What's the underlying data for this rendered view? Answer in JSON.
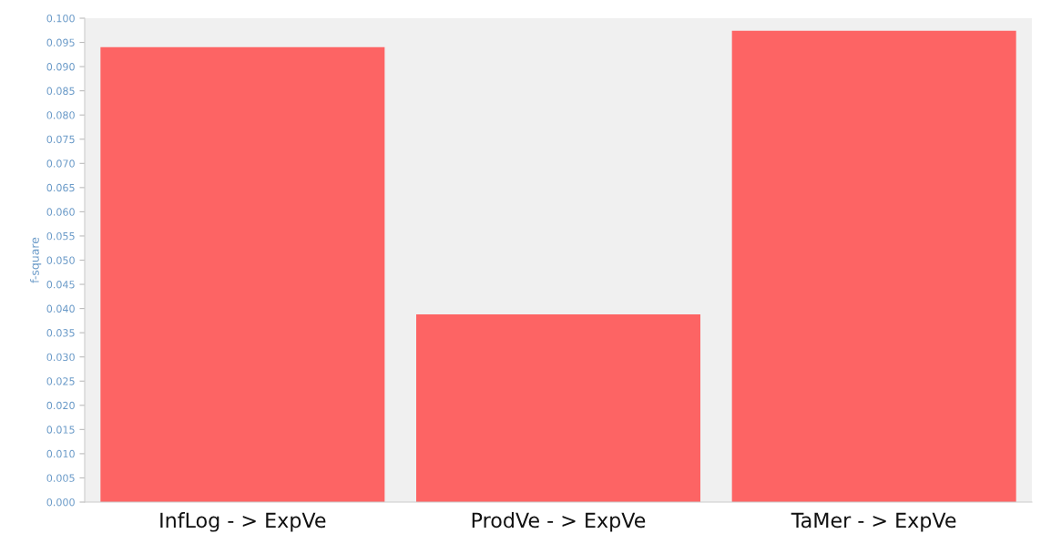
{
  "chart_data": {
    "type": "bar",
    "ylabel": "f-square",
    "categories": [
      "InfLog - > ExpVe",
      "ProdVe - > ExpVe",
      "TaMer - > ExpVe"
    ],
    "values": [
      0.094,
      0.0388,
      0.0974
    ],
    "color": "#fd6464",
    "ylim": [
      0,
      0.1
    ],
    "yticks": [
      {
        "value": 0,
        "label": "0.000"
      },
      {
        "value": 0.005,
        "label": "0.005"
      },
      {
        "value": 0.01,
        "label": "0.010"
      },
      {
        "value": 0.015,
        "label": "0.015"
      },
      {
        "value": 0.02,
        "label": "0.020"
      },
      {
        "value": 0.025,
        "label": "0.025"
      },
      {
        "value": 0.03,
        "label": "0.030"
      },
      {
        "value": 0.035,
        "label": "0.035"
      },
      {
        "value": 0.04,
        "label": "0.040"
      },
      {
        "value": 0.045,
        "label": "0.045"
      },
      {
        "value": 0.05,
        "label": "0.050"
      },
      {
        "value": 0.055,
        "label": "0.055"
      },
      {
        "value": 0.06,
        "label": "0.060"
      },
      {
        "value": 0.065,
        "label": "0.065"
      },
      {
        "value": 0.07,
        "label": "0.070"
      },
      {
        "value": 0.075,
        "label": "0.075"
      },
      {
        "value": 0.08,
        "label": "0.080"
      },
      {
        "value": 0.085,
        "label": "0.085"
      },
      {
        "value": 0.09,
        "label": "0.090"
      },
      {
        "value": 0.095,
        "label": "0.095"
      },
      {
        "value": 0.1,
        "label": "0.100"
      }
    ],
    "grid": false
  }
}
